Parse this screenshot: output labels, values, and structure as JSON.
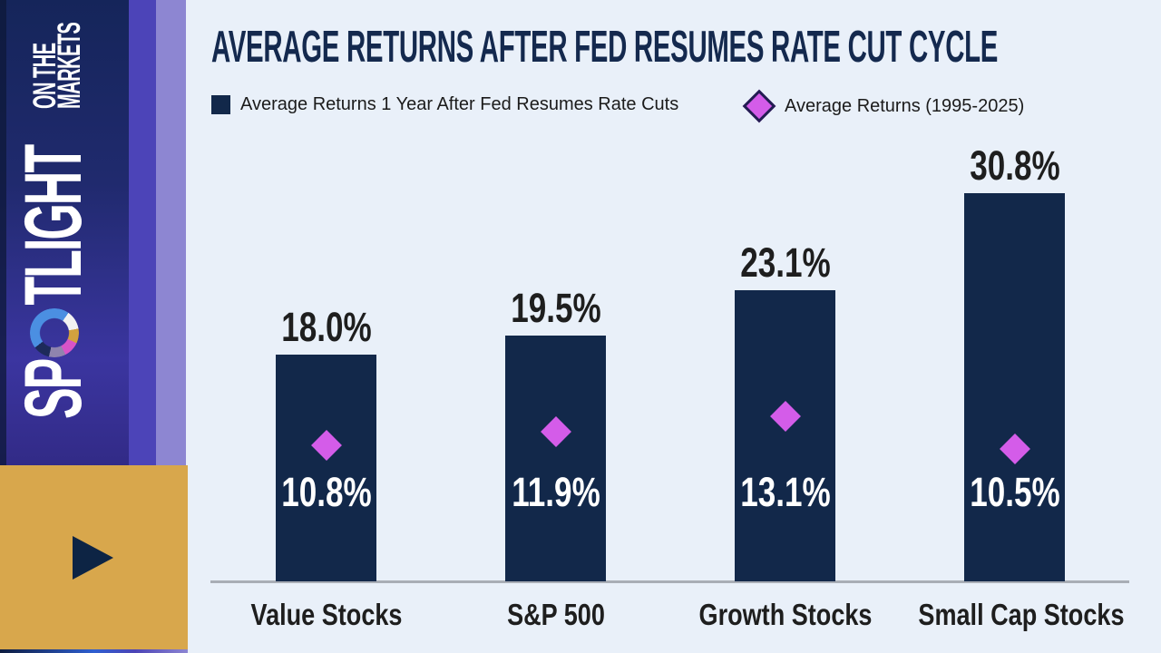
{
  "brand": {
    "name": "SPOTLIGHT ON THE MARKETS",
    "line1_pre_ring": "SP",
    "line1_post_ring": "TLIGHT",
    "line2": "ON THE",
    "line3": "MARKETS"
  },
  "legend": [
    {
      "label": "Average Returns 1 Year After Fed Resumes Rate Cuts",
      "marker": "square",
      "color": "#12284a"
    },
    {
      "label": "Average Returns (1995-2025)",
      "marker": "diamond",
      "color": "#d45ce9"
    }
  ],
  "chart_data": {
    "type": "bar",
    "title": "AVERAGE RETURNS AFTER FED RESUMES RATE CUT CYCLE",
    "categories": [
      "Value Stocks",
      "S&P 500",
      "Growth Stocks",
      "Small Cap Stocks"
    ],
    "series": [
      {
        "name": "Average Returns 1 Year After Fed Resumes Rate Cuts",
        "mark": "bar",
        "values": [
          18.0,
          19.5,
          23.1,
          30.8
        ],
        "labels": [
          "18.0%",
          "19.5%",
          "23.1%",
          "30.8%"
        ],
        "color": "#12284a"
      },
      {
        "name": "Average Returns (1995-2025)",
        "mark": "diamond",
        "values": [
          10.8,
          11.9,
          13.1,
          10.5
        ],
        "labels": [
          "10.8%",
          "11.9%",
          "13.1%",
          "10.5%"
        ],
        "color": "#d45ce9"
      }
    ],
    "xlabel": "",
    "ylabel": "",
    "ylim": [
      0,
      33
    ],
    "grid": false,
    "axis_visible": "x-only",
    "legend_position": "top"
  },
  "colors": {
    "background": "#e9f0f9",
    "bar_navy": "#12284a",
    "diamond_magenta": "#d45ce9",
    "title_navy": "#14294e",
    "sidebar_gold": "#d8a74c",
    "axis_gray": "#a9aeb6"
  }
}
